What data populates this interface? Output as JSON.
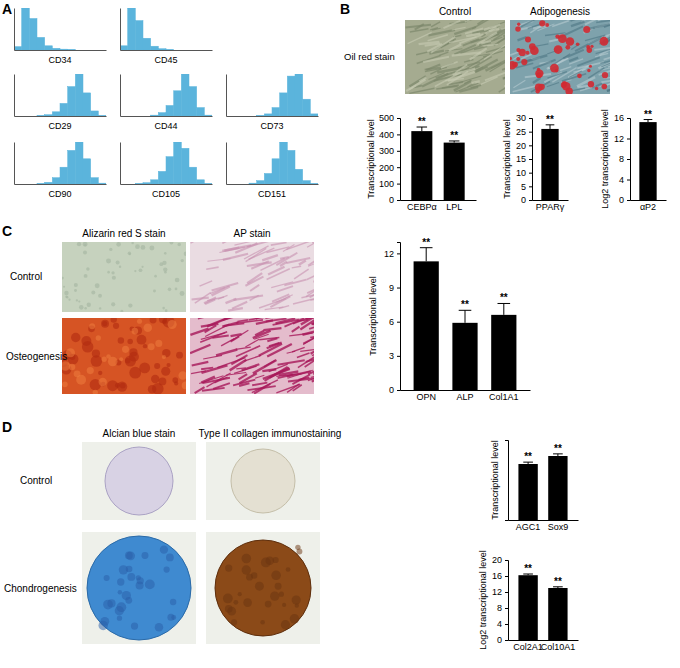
{
  "figure": {
    "panel_labels": [
      "A",
      "B",
      "C",
      "D"
    ],
    "B_images": {
      "row_label": "Oil red stain",
      "column_labels": [
        "Control",
        "Adipogenesis"
      ]
    },
    "C_images": {
      "column_labels": [
        "Alizarin red S stain",
        "AP stain"
      ],
      "row_labels": [
        "Control",
        "Osteogenesis"
      ]
    },
    "D_images": {
      "column_labels": [
        "Alcian blue stain",
        "Type II collagen immunostaining"
      ],
      "row_labels": [
        "Control",
        "Chondrogenesis"
      ]
    }
  },
  "chart_data": [
    {
      "type": "histogram",
      "title": "CD34",
      "bins": [
        0,
        1,
        2,
        3,
        4,
        5,
        6,
        7,
        8,
        9,
        10,
        11,
        12
      ],
      "counts": [
        8,
        100,
        75,
        30,
        10,
        4,
        2,
        1,
        0,
        0,
        0,
        0
      ],
      "xlim": [
        0,
        12
      ],
      "ylim": [
        0,
        100
      ],
      "color": "#5bb4dc",
      "tick_labels": false
    },
    {
      "type": "histogram",
      "title": "CD45",
      "bins": [
        0,
        1,
        2,
        3,
        4,
        5,
        6,
        7,
        8,
        9,
        10,
        11,
        12
      ],
      "counts": [
        10,
        100,
        70,
        28,
        9,
        3,
        1,
        0,
        0,
        0,
        0,
        0
      ],
      "xlim": [
        0,
        12
      ],
      "ylim": [
        0,
        100
      ],
      "color": "#5bb4dc",
      "tick_labels": false
    },
    {
      "type": "histogram",
      "title": "CD29",
      "bins": [
        0,
        1,
        2,
        3,
        4,
        5,
        6,
        7,
        8,
        9,
        10,
        11,
        12
      ],
      "counts": [
        0,
        0,
        0,
        1,
        3,
        10,
        30,
        70,
        100,
        55,
        12,
        1
      ],
      "xlim": [
        0,
        12
      ],
      "ylim": [
        0,
        100
      ],
      "color": "#5bb4dc",
      "tick_labels": false
    },
    {
      "type": "histogram",
      "title": "CD44",
      "bins": [
        0,
        1,
        2,
        3,
        4,
        5,
        6,
        7,
        8,
        9,
        10,
        11,
        12
      ],
      "counts": [
        0,
        0,
        0,
        0,
        2,
        8,
        25,
        60,
        100,
        70,
        20,
        2
      ],
      "xlim": [
        0,
        12
      ],
      "ylim": [
        0,
        100
      ],
      "color": "#5bb4dc",
      "tick_labels": false
    },
    {
      "type": "histogram",
      "title": "CD73",
      "bins": [
        0,
        1,
        2,
        3,
        4,
        5,
        6,
        7,
        8,
        9,
        10,
        11,
        12
      ],
      "counts": [
        0,
        0,
        0,
        0,
        1,
        5,
        20,
        55,
        95,
        100,
        40,
        5
      ],
      "xlim": [
        0,
        12
      ],
      "ylim": [
        0,
        100
      ],
      "color": "#5bb4dc",
      "tick_labels": false
    },
    {
      "type": "histogram",
      "title": "CD90",
      "bins": [
        0,
        1,
        2,
        3,
        4,
        5,
        6,
        7,
        8,
        9,
        10,
        11,
        12
      ],
      "counts": [
        0,
        0,
        0,
        1,
        4,
        15,
        40,
        80,
        100,
        60,
        15,
        2
      ],
      "xlim": [
        0,
        12
      ],
      "ylim": [
        0,
        100
      ],
      "color": "#5bb4dc",
      "tick_labels": false
    },
    {
      "type": "histogram",
      "title": "CD105",
      "bins": [
        0,
        1,
        2,
        3,
        4,
        5,
        6,
        7,
        8,
        9,
        10,
        11,
        12
      ],
      "counts": [
        0,
        0,
        1,
        3,
        10,
        30,
        65,
        100,
        85,
        40,
        10,
        1
      ],
      "xlim": [
        0,
        12
      ],
      "ylim": [
        0,
        100
      ],
      "color": "#5bb4dc",
      "tick_labels": false
    },
    {
      "type": "histogram",
      "title": "CD151",
      "bins": [
        0,
        1,
        2,
        3,
        4,
        5,
        6,
        7,
        8,
        9,
        10,
        11,
        12
      ],
      "counts": [
        0,
        0,
        0,
        2,
        8,
        25,
        60,
        100,
        80,
        35,
        8,
        1
      ],
      "xlim": [
        0,
        12
      ],
      "ylim": [
        0,
        100
      ],
      "color": "#5bb4dc",
      "tick_labels": false
    },
    {
      "type": "bar",
      "y_label": "Transcriptional level",
      "categories": [
        "CEBPα",
        "LPL"
      ],
      "values": [
        420,
        350
      ],
      "errors": [
        25,
        10
      ],
      "annotations": [
        "**",
        "**"
      ],
      "ylim": [
        0,
        500
      ],
      "yticks": [
        0,
        100,
        200,
        300,
        400,
        500
      ],
      "color": "#000000"
    },
    {
      "type": "bar",
      "y_label": "Transcriptional level",
      "categories": [
        "PPARγ"
      ],
      "values": [
        26
      ],
      "errors": [
        1.5
      ],
      "annotations": [
        "**"
      ],
      "ylim": [
        0,
        30
      ],
      "yticks": [
        0,
        5,
        10,
        15,
        20,
        25,
        30
      ],
      "color": "#000000"
    },
    {
      "type": "bar",
      "y_label": "Log2 transcriptional level",
      "categories": [
        "αP2"
      ],
      "values": [
        15.2
      ],
      "errors": [
        0.5
      ],
      "annotations": [
        "**"
      ],
      "ylim": [
        0,
        16
      ],
      "yticks": [
        0,
        4,
        8,
        12,
        16
      ],
      "color": "#000000"
    },
    {
      "type": "bar",
      "y_label": "Transcriptional level",
      "categories": [
        "OPN",
        "ALP",
        "Col1A1"
      ],
      "values": [
        11.3,
        5.9,
        6.6
      ],
      "errors": [
        1.2,
        1.1,
        1.0
      ],
      "annotations": [
        "**",
        "**",
        "**"
      ],
      "ylim": [
        0,
        13
      ],
      "yticks": [
        0,
        3,
        6,
        9,
        12
      ],
      "color": "#000000"
    },
    {
      "type": "bar",
      "y_label": "Transcriptional level",
      "categories": [
        "AGC1",
        "Sox9"
      ],
      "values": [
        21,
        24
      ],
      "errors": [
        0.7,
        0.8
      ],
      "annotations": [
        "**",
        "**"
      ],
      "ylim": [
        0,
        30
      ],
      "tick_labels": false,
      "color": "#000000"
    },
    {
      "type": "bar",
      "y_label": "Log2 transcriptional level",
      "categories": [
        "Col2A1",
        "Col10A1"
      ],
      "values": [
        16.2,
        13
      ],
      "errors": [
        0.3,
        0.3
      ],
      "annotations": [
        "**",
        "**"
      ],
      "ylim": [
        0,
        20
      ],
      "yticks": [
        0,
        4,
        8,
        12,
        16,
        20
      ],
      "color": "#000000"
    }
  ]
}
